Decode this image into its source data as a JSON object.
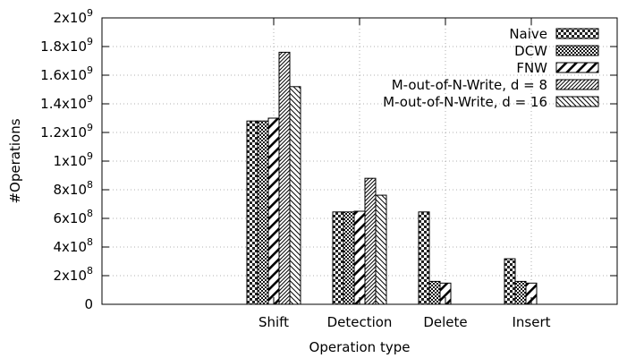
{
  "chart_data": {
    "type": "bar",
    "xlabel": "Operation type",
    "ylabel": "#Operations",
    "ylim": [
      0,
      2000000000
    ],
    "yticks": [
      {
        "value": 0,
        "base": "0",
        "exp": ""
      },
      {
        "value": 200000000,
        "base": "2x10",
        "exp": "8"
      },
      {
        "value": 400000000,
        "base": "4x10",
        "exp": "8"
      },
      {
        "value": 600000000,
        "base": "6x10",
        "exp": "8"
      },
      {
        "value": 800000000,
        "base": "8x10",
        "exp": "8"
      },
      {
        "value": 1000000000,
        "base": "1x10",
        "exp": "9"
      },
      {
        "value": 1200000000,
        "base": "1.2x10",
        "exp": "9"
      },
      {
        "value": 1400000000,
        "base": "1.4x10",
        "exp": "9"
      },
      {
        "value": 1600000000,
        "base": "1.6x10",
        "exp": "9"
      },
      {
        "value": 1800000000,
        "base": "1.8x10",
        "exp": "9"
      },
      {
        "value": 2000000000,
        "base": "2x10",
        "exp": "9"
      }
    ],
    "categories": [
      "Shift",
      "Detection",
      "Delete",
      "Insert"
    ],
    "grid": true,
    "legend_position": "top-right",
    "series": [
      {
        "name": "Naive",
        "pattern": "checker",
        "values": [
          1280000000,
          645000000,
          645000000,
          318000000
        ]
      },
      {
        "name": "DCW",
        "pattern": "dense-checker",
        "values": [
          1280000000,
          645000000,
          160000000,
          160000000
        ]
      },
      {
        "name": "FNW",
        "pattern": "wide-diagonal",
        "values": [
          1300000000,
          650000000,
          148000000,
          148000000
        ]
      },
      {
        "name": "M-out-of-N-Write, d = 8",
        "pattern": "fine-diagonal",
        "values": [
          1760000000,
          880000000,
          0,
          0
        ]
      },
      {
        "name": "M-out-of-N-Write, d = 16",
        "pattern": "medium-diagonal",
        "values": [
          1520000000,
          762000000,
          0,
          0
        ]
      }
    ]
  }
}
